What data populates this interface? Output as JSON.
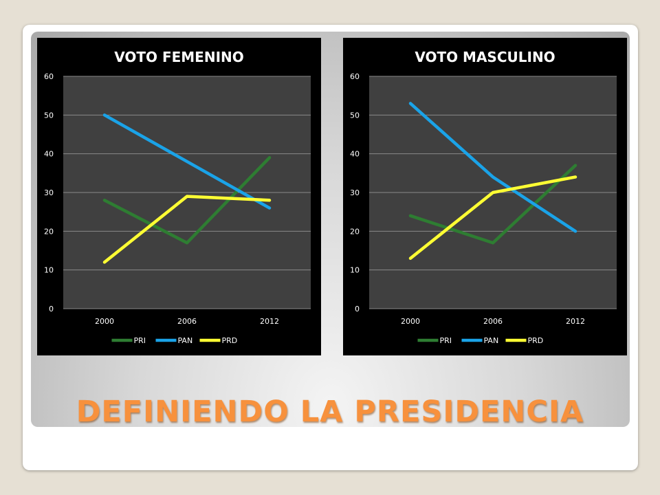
{
  "slide": {
    "title": "DEFINIENDO LA PRESIDENCIA",
    "background": "#e6e0d4",
    "title_color": "#f7913d"
  },
  "chart_data": [
    {
      "type": "line",
      "title": "VOTO FEMENINO",
      "categories": [
        "2000",
        "2006",
        "2012"
      ],
      "ylim": [
        0,
        60
      ],
      "yticks": [
        0,
        10,
        20,
        30,
        40,
        50,
        60
      ],
      "grid": true,
      "legend": "bottom",
      "series": [
        {
          "name": "PRI",
          "color": "#2e7d32",
          "values": [
            28,
            17,
            39
          ]
        },
        {
          "name": "PAN",
          "color": "#1aa3e8",
          "values": [
            50,
            38,
            26
          ]
        },
        {
          "name": "PRD",
          "color": "#ffff33",
          "values": [
            12,
            29,
            28
          ]
        }
      ]
    },
    {
      "type": "line",
      "title": "VOTO MASCULINO",
      "categories": [
        "2000",
        "2006",
        "2012"
      ],
      "ylim": [
        0,
        60
      ],
      "yticks": [
        0,
        10,
        20,
        30,
        40,
        50,
        60
      ],
      "grid": true,
      "legend": "bottom",
      "series": [
        {
          "name": "PRI",
          "color": "#2e7d32",
          "values": [
            24,
            17,
            37
          ]
        },
        {
          "name": "PAN",
          "color": "#1aa3e8",
          "values": [
            53,
            34,
            20
          ]
        },
        {
          "name": "PRD",
          "color": "#ffff33",
          "values": [
            13,
            30,
            34
          ]
        }
      ]
    }
  ]
}
